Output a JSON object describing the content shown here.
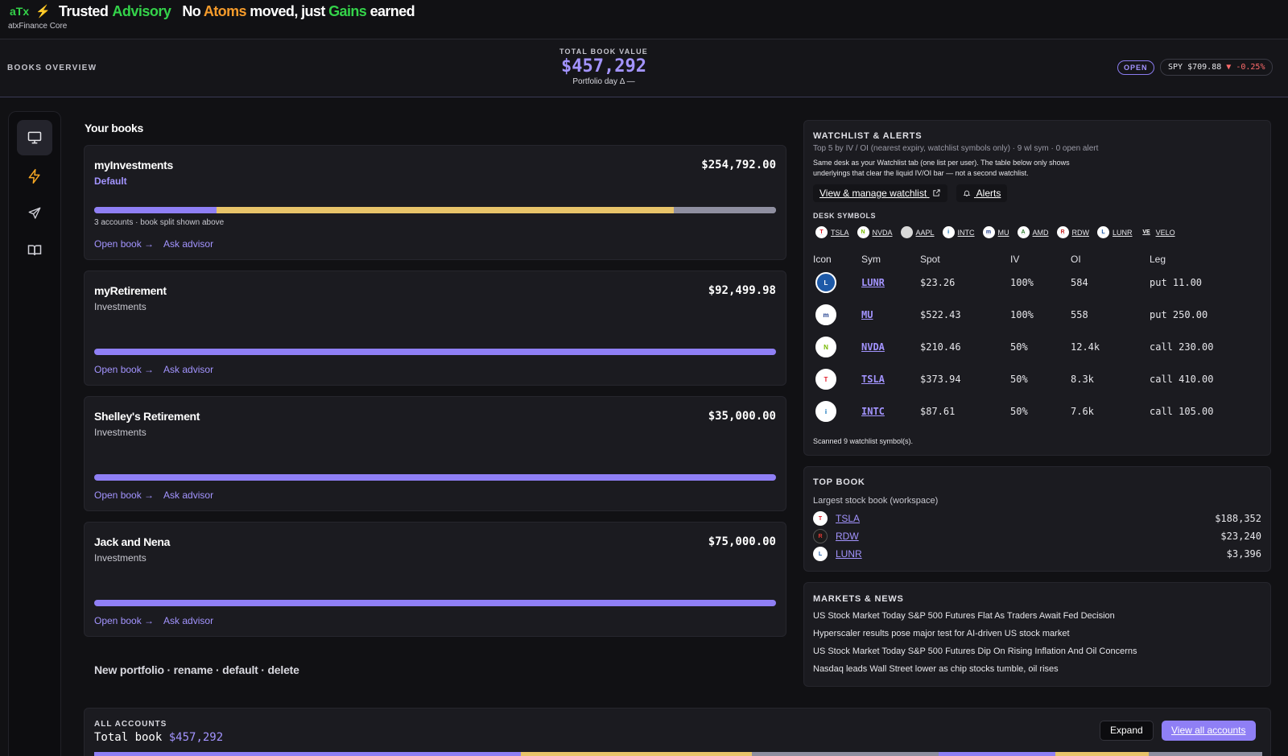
{
  "brand": {
    "logo": "aTx",
    "bolt": "⚡",
    "word1": "Trusted",
    "word2": "Advisory",
    "tagline": {
      "p1": "No ",
      "p2": "Atoms",
      "p3": " moved, just ",
      "p4": "Gains",
      "p5": " earned"
    },
    "subtitle": "atxFinance Core"
  },
  "overview": {
    "label": "BOOKS OVERVIEW",
    "total_title": "TOTAL BOOK VALUE",
    "total_value": "$457,292",
    "day": "Portfolio day Δ —",
    "market_status": "OPEN",
    "spy": {
      "label": "SPY",
      "price": "$709.88",
      "arrow": "▼",
      "change": "-0.25%"
    }
  },
  "rail": {
    "items": [
      "desktop-icon",
      "bolt-icon",
      "rocket-icon",
      "book-icon"
    ],
    "active": 0
  },
  "books": {
    "title": "Your books",
    "items": [
      {
        "name": "myInvestments",
        "sub": "Default",
        "value": "$254,792.00",
        "note": "3 accounts · book split shown above",
        "open": "Open book →",
        "ask": "Ask advisor",
        "split": [
          0.18,
          0.67,
          0.15
        ]
      },
      {
        "name": "myRetirement",
        "sub": "Investments",
        "value": "$92,499.98",
        "note": "",
        "open": "Open book →",
        "ask": "Ask advisor",
        "split": [
          1.0
        ]
      },
      {
        "name": "Shelley's Retirement",
        "sub": "Investments",
        "value": "$35,000.00",
        "note": "",
        "open": "Open book →",
        "ask": "Ask advisor",
        "split": [
          1.0
        ]
      },
      {
        "name": "Jack and Nena",
        "sub": "Investments",
        "value": "$75,000.00",
        "note": "",
        "open": "Open book →",
        "ask": "Ask advisor",
        "split": [
          1.0
        ]
      }
    ],
    "management": "New portfolio · rename · default · delete"
  },
  "watchlist": {
    "title": "WATCHLIST & ALERTS",
    "subtitle": "Top 5 by IV / OI (nearest expiry, watchlist symbols only) · 9 wl sym · 0 open alert",
    "desc1": "Same desk as your Watchlist tab (one list per user). The table below only shows",
    "desc2": "underlyings that clear the liquid IV/OI bar — not a second watchlist.",
    "manage_label": "View & manage watchlist",
    "alerts_label": "Alerts",
    "desk_label": "DESK SYMBOLS",
    "desk_symbols": [
      {
        "sym": "TSLA",
        "ico": "T",
        "bg": "#ffffff",
        "fg": "#e11d2a"
      },
      {
        "sym": "NVDA",
        "ico": "N",
        "bg": "#ffffff",
        "fg": "#76b900"
      },
      {
        "sym": "AAPL",
        "ico": "",
        "bg": "#d9d9d9",
        "fg": "#333333"
      },
      {
        "sym": "INTC",
        "ico": "i",
        "bg": "#ffffff",
        "fg": "#0068b5"
      },
      {
        "sym": "MU",
        "ico": "m",
        "bg": "#ffffff",
        "fg": "#1d3c8c"
      },
      {
        "sym": "AMD",
        "ico": "A",
        "bg": "#ffffff",
        "fg": "#2f7d32"
      },
      {
        "sym": "RDW",
        "ico": "R",
        "bg": "#ffffff",
        "fg": "#c62828"
      },
      {
        "sym": "LUNR",
        "ico": "L",
        "bg": "#ffffff",
        "fg": "#1e5aa8"
      },
      {
        "sym": "VELO",
        "ico": "VE",
        "bg": "#1b1b20",
        "fg": "#ffffff"
      }
    ],
    "columns": [
      "Icon",
      "Sym",
      "Spot",
      "IV",
      "OI",
      "Leg"
    ],
    "rows": [
      {
        "sym": "LUNR",
        "spot": "$23.26",
        "iv": "100%",
        "oi": "584",
        "leg": "put 11.00",
        "ico": "L",
        "bg": "#1e5aa8",
        "fg": "#ffffff"
      },
      {
        "sym": "MU",
        "spot": "$522.43",
        "iv": "100%",
        "oi": "558",
        "leg": "put 250.00",
        "ico": "m",
        "bg": "#ffffff",
        "fg": "#1d3c8c"
      },
      {
        "sym": "NVDA",
        "spot": "$210.46",
        "iv": "50%",
        "oi": "12.4k",
        "leg": "call 230.00",
        "ico": "N",
        "bg": "#ffffff",
        "fg": "#76b900"
      },
      {
        "sym": "TSLA",
        "spot": "$373.94",
        "iv": "50%",
        "oi": "8.3k",
        "leg": "call 410.00",
        "ico": "T",
        "bg": "#ffffff",
        "fg": "#e11d2a"
      },
      {
        "sym": "INTC",
        "spot": "$87.61",
        "iv": "50%",
        "oi": "7.6k",
        "leg": "call 105.00",
        "ico": "i",
        "bg": "#ffffff",
        "fg": "#0068b5"
      }
    ],
    "footer": "Scanned 9 watchlist symbol(s)."
  },
  "top_book": {
    "title": "TOP BOOK",
    "subtitle": "Largest stock book (workspace)",
    "items": [
      {
        "sym": "TSLA",
        "value": "$188,352",
        "ico": "T",
        "bg": "#ffffff",
        "fg": "#e11d2a"
      },
      {
        "sym": "RDW",
        "value": "$23,240",
        "ico": "R",
        "bg": "#1b1b1b",
        "fg": "#e53935"
      },
      {
        "sym": "LUNR",
        "value": "$3,396",
        "ico": "L",
        "bg": "#ffffff",
        "fg": "#1e5aa8"
      }
    ]
  },
  "news": {
    "title": "MARKETS & NEWS",
    "items": [
      "US Stock Market Today S&P 500 Futures Flat As Traders Await Fed Decision",
      "Hyperscaler results pose major test for AI-driven US stock market",
      "US Stock Market Today S&P 500 Futures Dip On Rising Inflation And Oil Concerns",
      "Nasdaq leads Wall Street lower as chip stocks tumble, oil rises"
    ]
  },
  "accounts": {
    "label": "ALL ACCOUNTS",
    "total_label": "Total book",
    "total_value": "$457,292",
    "expand": "Expand",
    "view_all": "View all accounts",
    "split": [
      0.365,
      0.198,
      0.16,
      0.1,
      0.08,
      0.097
    ]
  },
  "colors": {
    "accent": "#a394ff",
    "bar_purple": "#8f7ff5",
    "bar_yellow": "#e8c46a",
    "bar_gray": "#8f8fa0",
    "positive": "#34d34a",
    "negative": "#ff6b6b"
  }
}
